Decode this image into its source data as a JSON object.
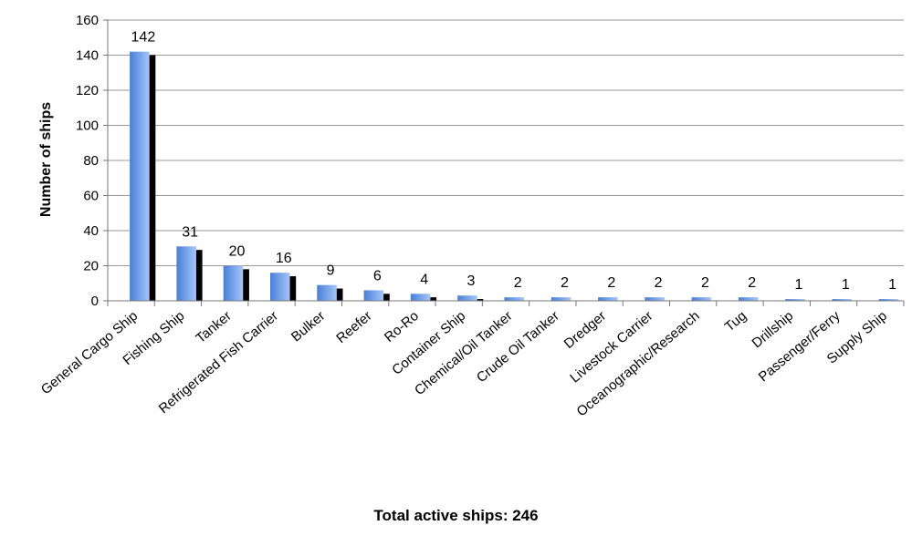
{
  "chart_data": {
    "type": "bar",
    "title": "",
    "xlabel": "",
    "ylabel": "Number of ships",
    "footer": "Total active ships: 246",
    "ylim": [
      0,
      160
    ],
    "yticks": [
      0,
      20,
      40,
      60,
      80,
      100,
      120,
      140,
      160
    ],
    "grid": true,
    "legend": "none",
    "categories": [
      "General Cargo Ship",
      "Fishing Ship",
      "Tanker",
      "Refrigerated Fish Carrier",
      "Bulker",
      "Reefer",
      "Ro-Ro",
      "Container Ship",
      "Chemical/Oil Tanker",
      "Crude Oil Tanker",
      "Dredger",
      "Livestock Carrier",
      "Oceanographic/Research",
      "Tug",
      "Drillship",
      "Passenger/Ferry",
      "Supply Ship"
    ],
    "series": [
      {
        "values": [
          142,
          31,
          20,
          16,
          9,
          6,
          4,
          3,
          2,
          2,
          2,
          2,
          2,
          2,
          1,
          1,
          1
        ],
        "color": "#6f9be6"
      },
      {
        "values": [
          140,
          29,
          18,
          14,
          7,
          4,
          2,
          1,
          0,
          0,
          0,
          0,
          0,
          0,
          0,
          0,
          0
        ],
        "color": "#000000"
      }
    ],
    "data_labels": [
      "142",
      "31",
      "20",
      "16",
      "9",
      "6",
      "4",
      "3",
      "2",
      "2",
      "2",
      "2",
      "2",
      "2",
      "1",
      "1",
      "1"
    ]
  }
}
